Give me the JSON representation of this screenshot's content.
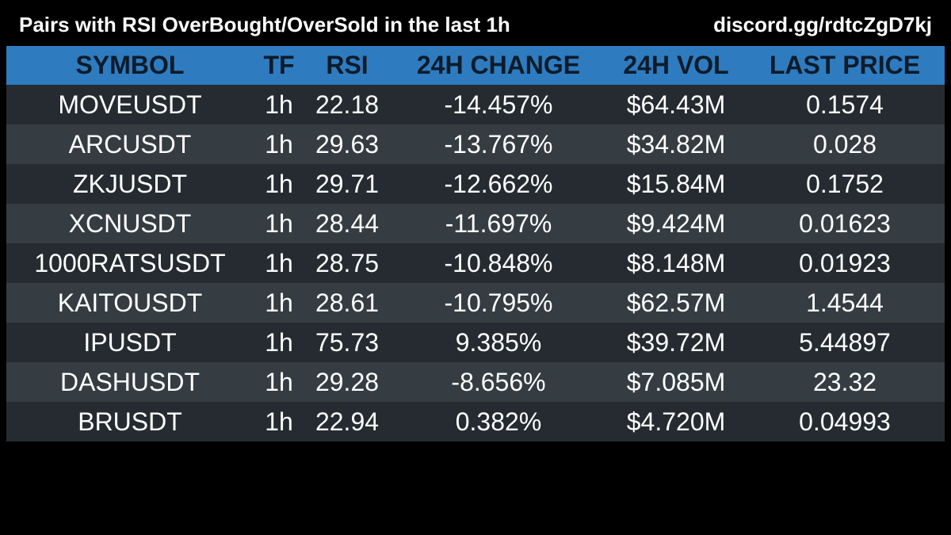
{
  "header": {
    "title": "Pairs with RSI OverBought/OverSold in the last 1h",
    "link": "discord.gg/rdtcZgD7kj"
  },
  "colors": {
    "background": "#000000",
    "header_row": "#2e7bbf",
    "header_text": "#0d1b2a",
    "row_odd": "#252b30",
    "row_even": "#353c42",
    "text": "#ffffff"
  },
  "table": {
    "columns": [
      "SYMBOL",
      "TF",
      "RSI",
      "24H CHANGE",
      "24H VOL",
      "LAST PRICE"
    ],
    "rows": [
      [
        "MOVEUSDT",
        "1h",
        "22.18",
        "-14.457%",
        "$64.43M",
        "0.1574"
      ],
      [
        "ARCUSDT",
        "1h",
        "29.63",
        "-13.767%",
        "$34.82M",
        "0.028"
      ],
      [
        "ZKJUSDT",
        "1h",
        "29.71",
        "-12.662%",
        "$15.84M",
        "0.1752"
      ],
      [
        "XCNUSDT",
        "1h",
        "28.44",
        "-11.697%",
        "$9.424M",
        "0.01623"
      ],
      [
        "1000RATSUSDT",
        "1h",
        "28.75",
        "-10.848%",
        "$8.148M",
        "0.01923"
      ],
      [
        "KAITOUSDT",
        "1h",
        "28.61",
        "-10.795%",
        "$62.57M",
        "1.4544"
      ],
      [
        "IPUSDT",
        "1h",
        "75.73",
        "9.385%",
        "$39.72M",
        "5.44897"
      ],
      [
        "DASHUSDT",
        "1h",
        "29.28",
        "-8.656%",
        "$7.085M",
        "23.32"
      ],
      [
        "BRUSDT",
        "1h",
        "22.94",
        "0.382%",
        "$4.720M",
        "0.04993"
      ]
    ]
  }
}
